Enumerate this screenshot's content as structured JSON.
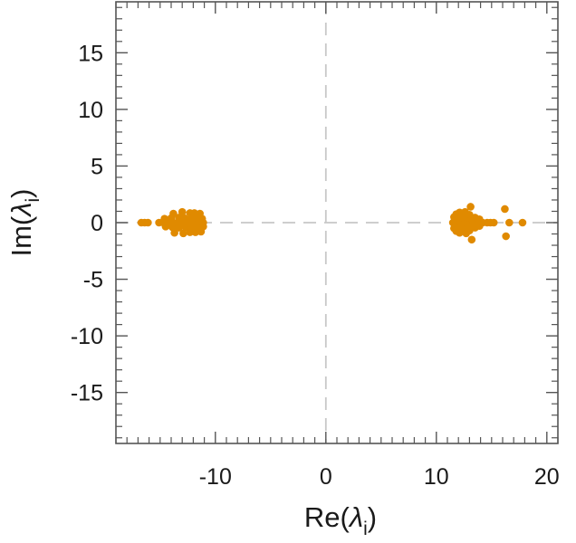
{
  "chart_data": {
    "type": "scatter",
    "title": "",
    "xlabel": {
      "prefix": "Re(",
      "symbol": "λ",
      "sub": "i",
      "suffix": ")"
    },
    "ylabel": {
      "prefix": "Im(",
      "symbol": "λ",
      "sub": "i",
      "suffix": ")"
    },
    "xlim": [
      -19,
      21
    ],
    "ylim": [
      -19.5,
      19.5
    ],
    "xticks": [
      -10,
      0,
      10,
      20
    ],
    "yticks": [
      15,
      10,
      5,
      0,
      -5,
      -10,
      -15
    ],
    "xtick_labels": [
      "-10",
      "0",
      "10",
      "20"
    ],
    "ytick_labels": [
      "15",
      "10",
      "5",
      "0",
      "-5",
      "-10",
      "-15"
    ],
    "x_minor_step": 1,
    "y_minor_step": 1,
    "grid": false,
    "reference_lines": {
      "x": 0,
      "y": 0,
      "style": "dashed",
      "color": "#c8c8c8"
    },
    "marker_color": "#e08a00",
    "series": [
      {
        "values": [
          [
            -16.7,
            0.0
          ],
          [
            -16.4,
            0.0
          ],
          [
            -16.1,
            0.0
          ],
          [
            -15.1,
            0.0
          ],
          [
            -14.7,
            0.0
          ],
          [
            -14.4,
            0.0
          ],
          [
            -14.1,
            0.0
          ],
          [
            -14.6,
            0.35
          ],
          [
            -14.5,
            -0.35
          ],
          [
            -14.0,
            0.4
          ],
          [
            -13.9,
            -0.4
          ],
          [
            -13.8,
            0.0
          ],
          [
            -13.8,
            0.8
          ],
          [
            -13.7,
            -0.9
          ],
          [
            -13.4,
            0.0
          ],
          [
            -13.3,
            0.45
          ],
          [
            -13.3,
            -0.45
          ],
          [
            -13.1,
            0.0
          ],
          [
            -13.0,
            0.95
          ],
          [
            -12.9,
            -0.95
          ],
          [
            -12.8,
            0.4
          ],
          [
            -12.7,
            -0.4
          ],
          [
            -12.6,
            0.0
          ],
          [
            -12.4,
            0.0
          ],
          [
            -12.3,
            0.85
          ],
          [
            -12.3,
            -0.85
          ],
          [
            -12.2,
            0.4
          ],
          [
            -12.1,
            -0.4
          ],
          [
            -12.0,
            0.0
          ],
          [
            -11.9,
            0.85
          ],
          [
            -11.8,
            -0.85
          ],
          [
            -11.7,
            0.4
          ],
          [
            -11.6,
            -0.4
          ],
          [
            -11.5,
            0.0
          ],
          [
            -11.4,
            0.8
          ],
          [
            -11.3,
            -0.8
          ],
          [
            -11.2,
            0.35
          ],
          [
            -11.1,
            -0.35
          ],
          [
            -11.1,
            0.0
          ],
          [
            11.5,
            0.0
          ],
          [
            11.6,
            0.5
          ],
          [
            11.6,
            -0.5
          ],
          [
            11.7,
            0.25
          ],
          [
            11.8,
            -0.2
          ],
          [
            11.8,
            0.75
          ],
          [
            11.8,
            -0.75
          ],
          [
            11.9,
            0.0
          ],
          [
            12.0,
            0.4
          ],
          [
            12.0,
            -0.4
          ],
          [
            12.1,
            0.9
          ],
          [
            12.1,
            -0.9
          ],
          [
            12.2,
            0.0
          ],
          [
            12.2,
            0.2
          ],
          [
            12.3,
            -0.2
          ],
          [
            12.3,
            0.6
          ],
          [
            12.4,
            -0.6
          ],
          [
            12.4,
            0.0
          ],
          [
            12.5,
            0.3
          ],
          [
            12.5,
            -0.3
          ],
          [
            12.6,
            0.0
          ],
          [
            12.6,
            0.95
          ],
          [
            12.7,
            -0.95
          ],
          [
            12.7,
            0.45
          ],
          [
            12.8,
            -0.45
          ],
          [
            12.8,
            0.0
          ],
          [
            12.9,
            0.2
          ],
          [
            12.9,
            -0.2
          ],
          [
            13.0,
            0.7
          ],
          [
            13.0,
            -0.7
          ],
          [
            13.1,
            0.0
          ],
          [
            13.1,
            1.4
          ],
          [
            13.2,
            -1.5
          ],
          [
            13.2,
            0.3
          ],
          [
            13.3,
            -0.3
          ],
          [
            13.4,
            0.0
          ],
          [
            13.5,
            0.45
          ],
          [
            13.5,
            -0.45
          ],
          [
            13.7,
            0.0
          ],
          [
            13.9,
            0.3
          ],
          [
            13.9,
            -0.3
          ],
          [
            14.2,
            0.0
          ],
          [
            14.6,
            0.0
          ],
          [
            14.9,
            0.0
          ],
          [
            15.2,
            0.0
          ],
          [
            16.2,
            1.2
          ],
          [
            16.3,
            -1.2
          ],
          [
            16.6,
            0.0
          ],
          [
            17.8,
            0.0
          ]
        ]
      }
    ]
  }
}
